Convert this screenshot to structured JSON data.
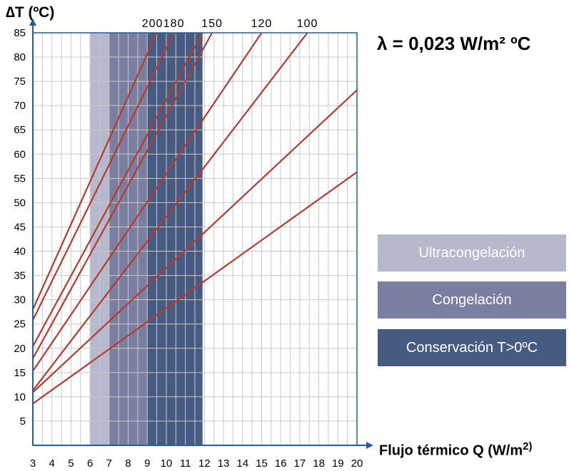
{
  "chart_data": {
    "type": "line",
    "ylabel": "∆T (ºC)",
    "xlabel": "Flujo térmico Q (W/m",
    "xlabel_sup": "2)",
    "annotation": "λ = 0,023 W/m² ºC",
    "xlim": [
      3,
      20
    ],
    "ylim": [
      0,
      85
    ],
    "x_ticks": [
      3,
      4,
      5,
      6,
      7,
      8,
      9,
      10,
      11,
      12,
      13,
      14,
      15,
      16,
      17,
      18,
      19,
      20
    ],
    "y_ticks": [
      5,
      10,
      15,
      20,
      25,
      30,
      35,
      40,
      45,
      50,
      55,
      60,
      65,
      70,
      75,
      80,
      85
    ],
    "grid": true,
    "bands": [
      {
        "name": "Ultracongelación",
        "x_start": 6.0,
        "x_end": 7.0,
        "color": "#b6b9ce"
      },
      {
        "name": "Congelación",
        "x_start": 7.0,
        "x_end": 9.0,
        "color": "#7a7fa2"
      },
      {
        "name": "Conservación T>0ºC",
        "x_start": 9.0,
        "x_end": 11.9,
        "color": "#465a82"
      }
    ],
    "series": [
      {
        "name": "200",
        "values": [
          [
            3,
            28.0
          ],
          [
            9.5,
            85.0
          ]
        ]
      },
      {
        "name": "180",
        "values": [
          [
            3,
            25.8
          ],
          [
            10.4,
            85.0
          ]
        ]
      },
      {
        "name": "",
        "values": [
          [
            3,
            20.4
          ],
          [
            11.9,
            85.0
          ]
        ]
      },
      {
        "name": "150",
        "values": [
          [
            3,
            17.9
          ],
          [
            12.4,
            85.0
          ]
        ]
      },
      {
        "name": "120",
        "values": [
          [
            3,
            15.3
          ],
          [
            15.0,
            85.0
          ]
        ]
      },
      {
        "name": "100",
        "values": [
          [
            3,
            11.3
          ],
          [
            17.4,
            85.0
          ]
        ]
      },
      {
        "name": "",
        "values": [
          [
            3,
            10.9
          ],
          [
            20,
            73.2
          ]
        ]
      },
      {
        "name": "",
        "values": [
          [
            3,
            8.6
          ],
          [
            20,
            56.3
          ]
        ]
      }
    ],
    "line_color": "#b83a2e",
    "axis_color": "#1f5fa8",
    "grid_color": "#c9c9c9"
  }
}
